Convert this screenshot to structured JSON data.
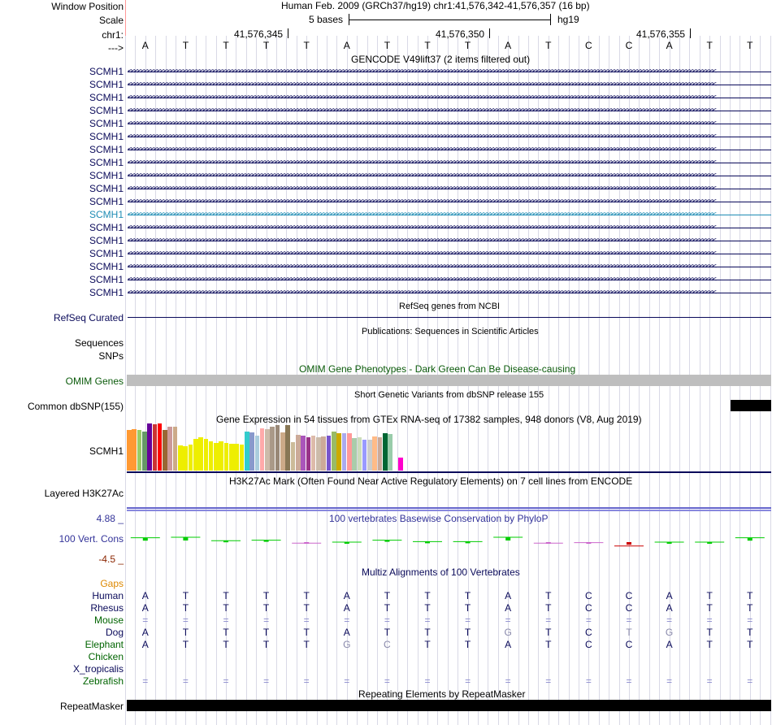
{
  "header": {
    "window_position_label": "Window Position",
    "window_position_text": "Human Feb. 2009 (GRCh37/hg19)   chr1:41,576,342-41,576,357 (16 bp)",
    "scale_label": "Scale",
    "scale_text": "5 bases",
    "scale_assembly": "hg19",
    "chrom_label": "chr1:",
    "ticks": [
      "41,576,345",
      "41,576,350",
      "41,576,355"
    ],
    "strand_label": "--->",
    "bases": [
      "A",
      "T",
      "T",
      "T",
      "T",
      "A",
      "T",
      "T",
      "T",
      "A",
      "T",
      "C",
      "C",
      "A",
      "T",
      "T"
    ]
  },
  "gencode": {
    "title": "GENCODE V49lift37 (2 items filtered out)",
    "gene_label": "SCMH1",
    "rows": 18,
    "highlight_row": 11,
    "color": "#0a0a5a",
    "highlight_color": "#1e8cb4"
  },
  "refseq": {
    "title": "RefSeq genes from NCBI",
    "label": "RefSeq Curated",
    "color": "#0a0a5a"
  },
  "publications": {
    "title": "Publications: Sequences in Scientific Articles",
    "label_sequences": "Sequences",
    "label_snps": "SNPs"
  },
  "omim": {
    "title": "OMIM Gene Phenotypes - Dark Green Can Be Disease-causing",
    "label": "OMIM Genes",
    "color": "#0a5a0a",
    "bar_color": "#bebebe"
  },
  "dbsnp": {
    "title": "Short Genetic Variants from dbSNP release 155",
    "label": "Common dbSNP(155)"
  },
  "gtex": {
    "title": "Gene Expression in 54 tissues from GTEx RNA-seq of 17382 samples, 948 donors (V8, Aug 2019)",
    "label": "SCMH1",
    "bars": [
      {
        "v": 0.55,
        "c": "#ff9933"
      },
      {
        "v": 0.57,
        "c": "#ff9933"
      },
      {
        "v": 0.55,
        "c": "#99cc66"
      },
      {
        "v": 0.53,
        "c": "#669966"
      },
      {
        "v": 0.64,
        "c": "#660099"
      },
      {
        "v": 0.63,
        "c": "#cc3333"
      },
      {
        "v": 0.64,
        "c": "#ff0000"
      },
      {
        "v": 0.56,
        "c": "#996633"
      },
      {
        "v": 0.6,
        "c": "#cc9999"
      },
      {
        "v": 0.6,
        "c": "#ccaa88"
      },
      {
        "v": 0.34,
        "c": "#eeee00"
      },
      {
        "v": 0.33,
        "c": "#eeee00"
      },
      {
        "v": 0.36,
        "c": "#eeee00"
      },
      {
        "v": 0.43,
        "c": "#eeee00"
      },
      {
        "v": 0.45,
        "c": "#eeee00"
      },
      {
        "v": 0.43,
        "c": "#eeee00"
      },
      {
        "v": 0.4,
        "c": "#eeee00"
      },
      {
        "v": 0.38,
        "c": "#eeee00"
      },
      {
        "v": 0.4,
        "c": "#eeee00"
      },
      {
        "v": 0.38,
        "c": "#eeee00"
      },
      {
        "v": 0.37,
        "c": "#eeee00"
      },
      {
        "v": 0.37,
        "c": "#eeee00"
      },
      {
        "v": 0.36,
        "c": "#eeee00"
      },
      {
        "v": 0.53,
        "c": "#33cccc"
      },
      {
        "v": 0.52,
        "c": "#8899cc"
      },
      {
        "v": 0.48,
        "c": "#aaccdd"
      },
      {
        "v": 0.58,
        "c": "#ffaaaa"
      },
      {
        "v": 0.57,
        "c": "#ccbbaa"
      },
      {
        "v": 0.6,
        "c": "#aa9988"
      },
      {
        "v": 0.62,
        "c": "#998877"
      },
      {
        "v": 0.52,
        "c": "#ccaa88"
      },
      {
        "v": 0.62,
        "c": "#887755"
      },
      {
        "v": 0.39,
        "c": "#ccbb99"
      },
      {
        "v": 0.49,
        "c": "#ccaa99"
      },
      {
        "v": 0.48,
        "c": "#aa55bb"
      },
      {
        "v": 0.46,
        "c": "#993388"
      },
      {
        "v": 0.48,
        "c": "#ddbbaa"
      },
      {
        "v": 0.46,
        "c": "#ccbbaa"
      },
      {
        "v": 0.47,
        "c": "#ccaa99"
      },
      {
        "v": 0.48,
        "c": "#7755cc"
      },
      {
        "v": 0.53,
        "c": "#99bb66"
      },
      {
        "v": 0.51,
        "c": "#ccaa00"
      },
      {
        "v": 0.51,
        "c": "#aaaaee"
      },
      {
        "v": 0.51,
        "c": "#ff9999"
      },
      {
        "v": 0.44,
        "c": "#aaccaa"
      },
      {
        "v": 0.46,
        "c": "#ccddbb"
      },
      {
        "v": 0.42,
        "c": "#9999ff"
      },
      {
        "v": 0.42,
        "c": "#cccccc"
      },
      {
        "v": 0.47,
        "c": "#ffbb88"
      },
      {
        "v": 0.45,
        "c": "#ccaa99"
      },
      {
        "v": 0.51,
        "c": "#006633"
      },
      {
        "v": 0.5,
        "c": "#99ccaa"
      },
      {
        "v": 0.35,
        "c": "#ffffff"
      },
      {
        "v": 0.18,
        "c": "#ff00cc"
      }
    ]
  },
  "h3k27ac": {
    "title": "H3K27Ac Mark (Often Found Near Active Regulatory Elements) on 7 cell lines from ENCODE",
    "label": "Layered H3K27Ac"
  },
  "phylop": {
    "title": "100 vertebrates Basewise Conservation by PhyloP",
    "label": "100 Vert. Cons",
    "max": "4.88 _",
    "min": "-4.5 _",
    "label_color": "#333399",
    "min_color": "#8b2500",
    "values": [
      0.9,
      1.0,
      0.3,
      0.4,
      -0.2,
      0.0,
      0.4,
      0.1,
      0.1,
      1.0,
      -0.2,
      -0.1,
      -0.8,
      0.0,
      0.0,
      0.9
    ]
  },
  "multiz": {
    "title": "Multiz Alignments of 100 Vertebrates",
    "gaps_label": "Gaps",
    "species": [
      {
        "name": "Human",
        "color": "#0a0a5a",
        "seq": [
          "A",
          "T",
          "T",
          "T",
          "T",
          "A",
          "T",
          "T",
          "T",
          "A",
          "T",
          "C",
          "C",
          "A",
          "T",
          "T"
        ]
      },
      {
        "name": "Rhesus",
        "color": "#0a0a5a",
        "seq": [
          "A",
          "T",
          "T",
          "T",
          "T",
          "A",
          "T",
          "T",
          "T",
          "A",
          "T",
          "C",
          "C",
          "A",
          "T",
          "T"
        ]
      },
      {
        "name": "Mouse",
        "color": "#006400",
        "seq": [
          "=",
          "=",
          "=",
          "=",
          "=",
          "=",
          "=",
          "=",
          "=",
          "=",
          "=",
          "=",
          "=",
          "=",
          "=",
          "="
        ]
      },
      {
        "name": "Dog",
        "color": "#0a0a5a",
        "seq": [
          "A",
          "T",
          "T",
          "T",
          "T",
          "A",
          "T",
          "T",
          "T",
          "G",
          "T",
          "C",
          "T",
          "G",
          "T",
          "T"
        ]
      },
      {
        "name": "Elephant",
        "color": "#006400",
        "seq": [
          "A",
          "T",
          "T",
          "T",
          "T",
          "G",
          "C",
          "T",
          "T",
          "A",
          "T",
          "C",
          "C",
          "A",
          "T",
          "T"
        ]
      },
      {
        "name": "Chicken",
        "color": "#006400",
        "seq": []
      },
      {
        "name": "X_tropicalis",
        "color": "#0a0a5a",
        "seq": []
      },
      {
        "name": "Zebrafish",
        "color": "#006400",
        "seq": [
          "=",
          "=",
          "=",
          "=",
          "=",
          "=",
          "=",
          "=",
          "=",
          "=",
          "=",
          "=",
          "=",
          "=",
          "=",
          "="
        ]
      }
    ]
  },
  "repeatmasker": {
    "title": "Repeating Elements by RepeatMasker",
    "label": "RepeatMasker"
  }
}
